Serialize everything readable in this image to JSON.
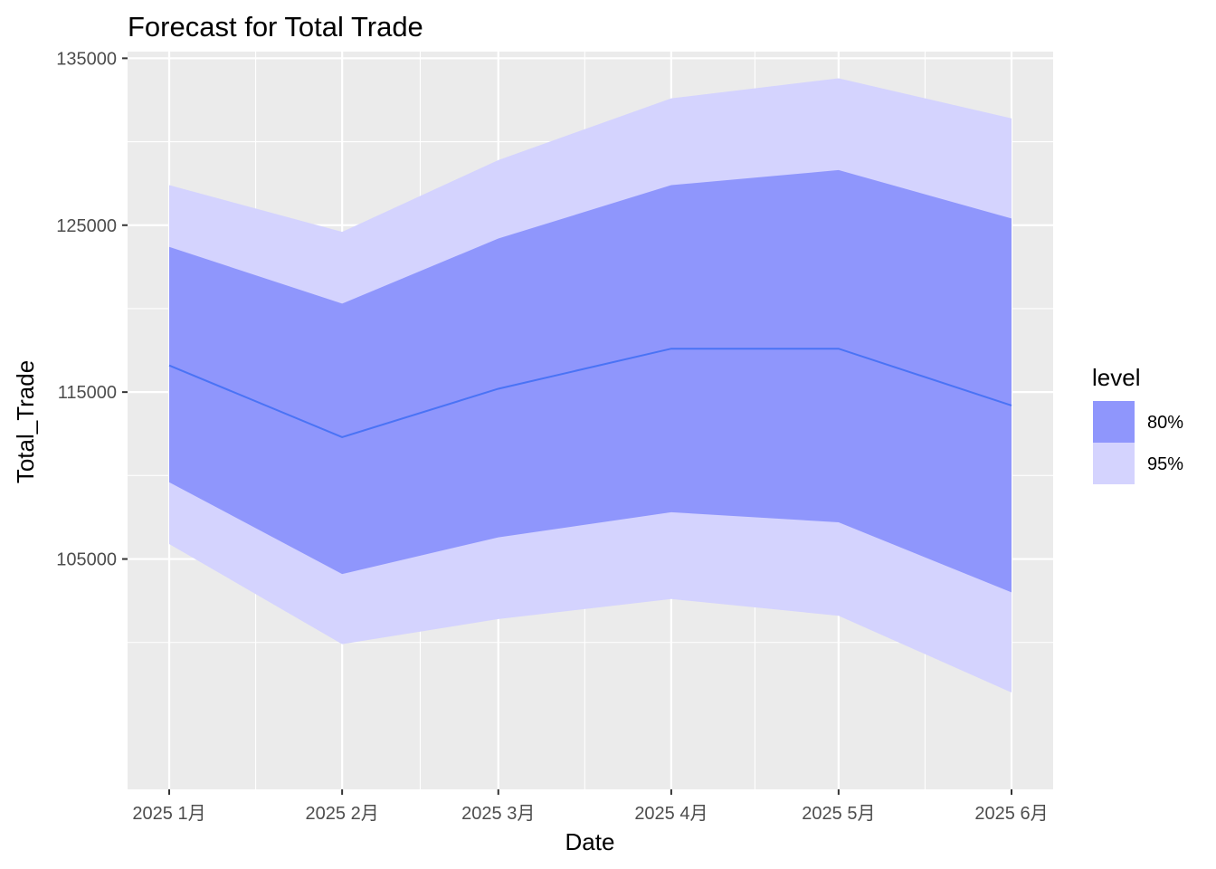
{
  "chart_data": {
    "type": "area",
    "title": "Forecast for Total Trade",
    "xlabel": "Date",
    "ylabel": "Total_Trade",
    "x": [
      "2025 1月",
      "2025 2月",
      "2025 3月",
      "2025 4月",
      "2025 5月",
      "2025 6月"
    ],
    "x_days": [
      0,
      31,
      59,
      90,
      120,
      151
    ],
    "ylim": [
      91200,
      135400
    ],
    "y_ticks": [
      105000,
      115000,
      125000,
      135000
    ],
    "y_tick_labels": [
      "105000",
      "115000",
      "125000",
      "135000"
    ],
    "x_tick_labels": [
      "2025 1月",
      "2025 2月",
      "2025 3月",
      "2025 4月",
      "2025 5月",
      "2025 6月"
    ],
    "grid": true,
    "legend": {
      "title": "level",
      "position": "right",
      "entries": [
        {
          "label": "80%",
          "color": "#8f96fc"
        },
        {
          "label": "95%",
          "color": "#d4d3fe"
        }
      ]
    },
    "series": [
      {
        "name": "95%",
        "kind": "band",
        "upper": [
          127400,
          124600,
          128900,
          132600,
          133800,
          131400
        ],
        "lower": [
          105900,
          99900,
          101400,
          102600,
          101600,
          97000
        ]
      },
      {
        "name": "80%",
        "kind": "band",
        "upper": [
          123700,
          120300,
          124200,
          127400,
          128300,
          125400
        ],
        "lower": [
          109600,
          104100,
          106300,
          107800,
          107200,
          103000
        ]
      },
      {
        "name": "",
        "kind": "line",
        "values": [
          116600,
          112300,
          115200,
          117600,
          117600,
          114200
        ]
      }
    ],
    "colors": {
      "panel_bg": "#ebebeb",
      "grid": "#ffffff",
      "band_95": "#d4d3fe",
      "band_80": "#8f96fc",
      "forecast_line": "#4a73f5"
    }
  }
}
